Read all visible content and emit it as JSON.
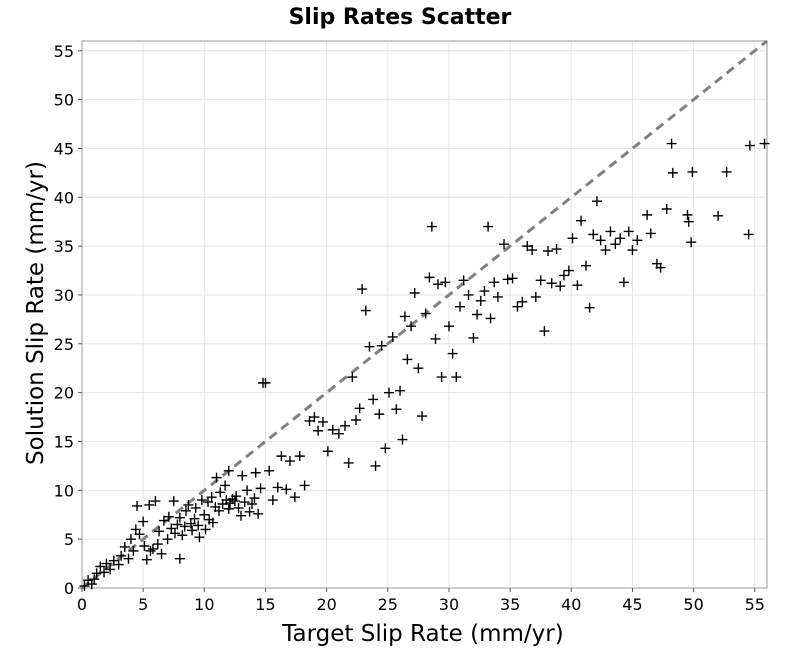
{
  "chart_data": {
    "type": "scatter",
    "title": "Slip Rates Scatter",
    "xlabel": "Target Slip Rate (mm/yr)",
    "ylabel": "Solution Slip Rate (mm/yr)",
    "xlim": [
      0,
      56
    ],
    "ylim": [
      0,
      56
    ],
    "xticks": [
      "0",
      "5",
      "10",
      "15",
      "20",
      "25",
      "30",
      "35",
      "40",
      "45",
      "50",
      "55"
    ],
    "yticks": [
      "0",
      "5",
      "10",
      "15",
      "20",
      "25",
      "30",
      "35",
      "40",
      "45",
      "50",
      "55"
    ],
    "grid": true,
    "marker": "plus",
    "marker_color": "#000000",
    "reference_line": {
      "type": "y=x",
      "style": "dashed",
      "color": "#808080"
    },
    "points": [
      [
        0.2,
        0.2
      ],
      [
        0.5,
        0.8
      ],
      [
        0.8,
        0.4
      ],
      [
        1.0,
        0.9
      ],
      [
        1.2,
        1.5
      ],
      [
        1.5,
        2.2
      ],
      [
        1.8,
        1.6
      ],
      [
        2.0,
        2.5
      ],
      [
        2.3,
        1.9
      ],
      [
        2.6,
        2.8
      ],
      [
        3.0,
        2.4
      ],
      [
        3.2,
        3.3
      ],
      [
        3.5,
        4.2
      ],
      [
        3.8,
        3.0
      ],
      [
        4.0,
        5.0
      ],
      [
        4.2,
        3.8
      ],
      [
        4.4,
        6.0
      ],
      [
        4.5,
        8.4
      ],
      [
        4.7,
        5.5
      ],
      [
        5.0,
        6.8
      ],
      [
        5.1,
        4.3
      ],
      [
        5.3,
        2.9
      ],
      [
        5.5,
        8.5
      ],
      [
        5.6,
        3.8
      ],
      [
        5.8,
        4.0
      ],
      [
        6.0,
        8.9
      ],
      [
        6.2,
        4.5
      ],
      [
        6.3,
        5.8
      ],
      [
        6.5,
        3.5
      ],
      [
        6.7,
        6.9
      ],
      [
        7.0,
        5.0
      ],
      [
        7.1,
        7.3
      ],
      [
        7.3,
        6.1
      ],
      [
        7.5,
        8.9
      ],
      [
        7.6,
        5.6
      ],
      [
        7.8,
        6.5
      ],
      [
        8.0,
        7.2
      ],
      [
        8.0,
        3.0
      ],
      [
        8.2,
        5.4
      ],
      [
        8.4,
        6.3
      ],
      [
        8.5,
        7.9
      ],
      [
        8.7,
        8.5
      ],
      [
        8.9,
        6.6
      ],
      [
        9.0,
        5.9
      ],
      [
        9.2,
        7.1
      ],
      [
        9.3,
        8.2
      ],
      [
        9.5,
        6.4
      ],
      [
        9.6,
        5.2
      ],
      [
        9.8,
        9.0
      ],
      [
        10.0,
        7.5
      ],
      [
        10.1,
        6.0
      ],
      [
        10.3,
        8.8
      ],
      [
        10.4,
        7.0
      ],
      [
        10.6,
        9.3
      ],
      [
        10.7,
        6.7
      ],
      [
        10.9,
        8.3
      ],
      [
        11.0,
        11.3
      ],
      [
        11.2,
        7.9
      ],
      [
        11.3,
        9.8
      ],
      [
        11.5,
        8.6
      ],
      [
        11.7,
        10.5
      ],
      [
        11.8,
        9.0
      ],
      [
        12.0,
        8.1
      ],
      [
        12.0,
        12.0
      ],
      [
        12.1,
        8.7
      ],
      [
        12.3,
        9.1
      ],
      [
        12.5,
        8.9
      ],
      [
        12.6,
        9.4
      ],
      [
        12.8,
        8.2
      ],
      [
        13.0,
        7.4
      ],
      [
        13.1,
        11.5
      ],
      [
        13.3,
        8.8
      ],
      [
        13.5,
        10.0
      ],
      [
        13.7,
        7.8
      ],
      [
        13.9,
        8.6
      ],
      [
        14.1,
        9.2
      ],
      [
        14.2,
        11.8
      ],
      [
        14.4,
        7.6
      ],
      [
        14.6,
        10.2
      ],
      [
        14.8,
        21.0
      ],
      [
        15.0,
        21.0
      ],
      [
        15.3,
        12.0
      ],
      [
        15.6,
        9.0
      ],
      [
        16.0,
        10.3
      ],
      [
        16.3,
        13.5
      ],
      [
        16.7,
        10.1
      ],
      [
        17.0,
        13.0
      ],
      [
        17.4,
        9.3
      ],
      [
        17.8,
        13.5
      ],
      [
        18.2,
        10.5
      ],
      [
        18.6,
        17.1
      ],
      [
        19.0,
        17.5
      ],
      [
        19.3,
        16.1
      ],
      [
        19.7,
        17.0
      ],
      [
        20.1,
        14.0
      ],
      [
        20.5,
        16.2
      ],
      [
        21.0,
        15.8
      ],
      [
        21.5,
        16.6
      ],
      [
        21.8,
        12.8
      ],
      [
        22.1,
        21.6
      ],
      [
        22.4,
        17.2
      ],
      [
        22.7,
        18.4
      ],
      [
        22.9,
        30.6
      ],
      [
        23.2,
        28.4
      ],
      [
        23.5,
        24.7
      ],
      [
        23.8,
        19.3
      ],
      [
        24.0,
        12.5
      ],
      [
        24.3,
        17.8
      ],
      [
        24.5,
        24.8
      ],
      [
        24.8,
        14.3
      ],
      [
        25.1,
        20.0
      ],
      [
        25.4,
        25.7
      ],
      [
        25.7,
        18.3
      ],
      [
        26.0,
        20.2
      ],
      [
        26.2,
        15.2
      ],
      [
        26.4,
        27.8
      ],
      [
        26.6,
        23.4
      ],
      [
        26.9,
        26.8
      ],
      [
        27.2,
        30.2
      ],
      [
        27.5,
        22.5
      ],
      [
        27.8,
        17.6
      ],
      [
        28.1,
        28.1
      ],
      [
        28.4,
        31.8
      ],
      [
        28.6,
        37.0
      ],
      [
        28.9,
        25.5
      ],
      [
        29.1,
        31.1
      ],
      [
        29.4,
        21.6
      ],
      [
        29.7,
        31.3
      ],
      [
        30.0,
        26.8
      ],
      [
        30.3,
        24.0
      ],
      [
        30.6,
        21.6
      ],
      [
        30.9,
        28.8
      ],
      [
        31.2,
        31.5
      ],
      [
        31.6,
        30.0
      ],
      [
        32.0,
        25.6
      ],
      [
        32.3,
        28.0
      ],
      [
        32.6,
        29.4
      ],
      [
        32.9,
        30.4
      ],
      [
        33.2,
        37.0
      ],
      [
        33.4,
        27.6
      ],
      [
        33.7,
        31.3
      ],
      [
        34.0,
        29.8
      ],
      [
        34.5,
        35.2
      ],
      [
        34.8,
        31.6
      ],
      [
        35.2,
        31.7
      ],
      [
        35.6,
        28.8
      ],
      [
        36.0,
        29.3
      ],
      [
        36.4,
        35.0
      ],
      [
        36.8,
        34.6
      ],
      [
        37.1,
        29.8
      ],
      [
        37.5,
        31.5
      ],
      [
        37.8,
        26.3
      ],
      [
        38.1,
        34.5
      ],
      [
        38.4,
        31.2
      ],
      [
        38.8,
        34.7
      ],
      [
        39.1,
        30.9
      ],
      [
        39.4,
        32.0
      ],
      [
        39.8,
        32.5
      ],
      [
        40.1,
        35.8
      ],
      [
        40.5,
        31.0
      ],
      [
        40.8,
        37.6
      ],
      [
        41.2,
        33.0
      ],
      [
        41.5,
        28.7
      ],
      [
        41.8,
        36.2
      ],
      [
        42.1,
        39.6
      ],
      [
        42.4,
        35.6
      ],
      [
        42.8,
        34.6
      ],
      [
        43.2,
        36.5
      ],
      [
        43.6,
        35.2
      ],
      [
        44.0,
        35.8
      ],
      [
        44.3,
        31.3
      ],
      [
        44.7,
        36.5
      ],
      [
        45.0,
        34.6
      ],
      [
        45.4,
        35.6
      ],
      [
        46.2,
        38.2
      ],
      [
        46.5,
        36.3
      ],
      [
        47.0,
        33.2
      ],
      [
        47.3,
        32.8
      ],
      [
        47.8,
        38.8
      ],
      [
        48.2,
        45.5
      ],
      [
        48.3,
        42.5
      ],
      [
        49.5,
        38.2
      ],
      [
        49.6,
        37.5
      ],
      [
        49.8,
        35.4
      ],
      [
        49.9,
        42.6
      ],
      [
        52.0,
        38.1
      ],
      [
        52.7,
        42.6
      ],
      [
        54.5,
        36.2
      ],
      [
        54.6,
        45.3
      ],
      [
        55.8,
        45.5
      ]
    ]
  }
}
